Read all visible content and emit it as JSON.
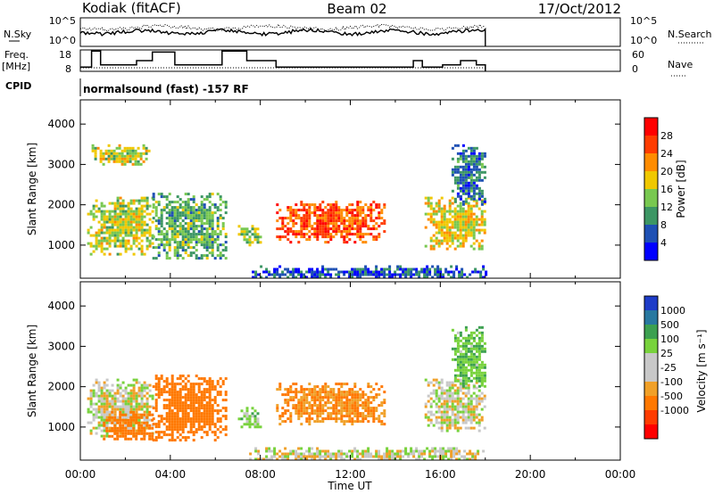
{
  "header": {
    "station": "Kodiak (fitACF)",
    "beam": "Beam 02",
    "date": "17/Oct/2012"
  },
  "noise_panel": {
    "left_label": "N.Sky",
    "right_label": "N.Search",
    "left_ticks": [
      "10^5",
      "10^0"
    ],
    "right_ticks": [
      "10^5",
      "10^0"
    ]
  },
  "freq_panel": {
    "left_label_1": "Freq.",
    "left_label_2": "[MHz]",
    "right_label": "Nave",
    "left_ticks": [
      "18",
      "8"
    ],
    "right_ticks": [
      "60",
      "0"
    ]
  },
  "cpid": {
    "label": "CPID",
    "text": "normalsound (fast) -157 RF"
  },
  "axes": {
    "ylabel": "Slant Range [km]",
    "xlabel": "Time UT",
    "xticks": [
      "00:00",
      "04:00",
      "08:00",
      "12:00",
      "16:00",
      "20:00",
      "00:00"
    ],
    "yticks": [
      "1000",
      "2000",
      "3000",
      "4000"
    ]
  },
  "chart_data": [
    {
      "type": "heatmap",
      "title": "",
      "quantity": "Power",
      "xlabel": "Time UT",
      "ylabel": "Slant Range [km]",
      "xlim_hours": [
        0,
        24
      ],
      "ylim_km": [
        180,
        4600
      ],
      "colorbar": {
        "label": "Power [dB]",
        "ticks": [
          "28",
          "24",
          "20",
          "16",
          "12",
          "8",
          "4"
        ],
        "colors": [
          "#ff0000",
          "#ff3c00",
          "#ff8c00",
          "#f0c800",
          "#78c850",
          "#3c9664",
          "#1e50b4",
          "#0000ff"
        ]
      },
      "echo_regions": [
        {
          "start": 0.3,
          "end": 3.2,
          "rmin": 800,
          "rmax": 2200,
          "value": 16
        },
        {
          "start": 0.5,
          "end": 3.0,
          "rmin": 3000,
          "rmax": 3500,
          "value": 16
        },
        {
          "start": 3.2,
          "end": 6.5,
          "rmin": 700,
          "rmax": 2300,
          "value": 12
        },
        {
          "start": 7.0,
          "end": 8.0,
          "rmin": 1000,
          "rmax": 1500,
          "value": 14
        },
        {
          "start": 8.7,
          "end": 13.5,
          "rmin": 1100,
          "rmax": 2100,
          "value": 25
        },
        {
          "start": 15.3,
          "end": 18.0,
          "rmin": 900,
          "rmax": 2200,
          "value": 18
        },
        {
          "start": 16.5,
          "end": 18.0,
          "rmin": 2000,
          "rmax": 3500,
          "value": 8
        },
        {
          "start": 7.5,
          "end": 18.0,
          "rmin": 200,
          "rmax": 500,
          "value": 6
        }
      ]
    },
    {
      "type": "heatmap",
      "title": "",
      "quantity": "Velocity",
      "xlabel": "Time UT",
      "ylabel": "Slant Range [km]",
      "xlim_hours": [
        0,
        24
      ],
      "ylim_km": [
        180,
        4600
      ],
      "colorbar": {
        "label": "Velocity [m s⁻¹]",
        "ticks": [
          "1000",
          "500",
          "100",
          "25",
          "-25",
          "-100",
          "-500",
          "-1000"
        ],
        "colors": [
          "#1e3cc8",
          "#2878a0",
          "#3ca050",
          "#78d23c",
          "#c8c8c8",
          "#c8c8c8",
          "#f0a028",
          "#ff7800",
          "#ff3c00",
          "#ff0000"
        ]
      },
      "echo_regions": [
        {
          "start": 0.3,
          "end": 3.2,
          "rmin": 800,
          "rmax": 2200,
          "value": 0
        },
        {
          "start": 1.0,
          "end": 3.2,
          "rmin": 700,
          "rmax": 1400,
          "value": -300
        },
        {
          "start": 3.2,
          "end": 6.5,
          "rmin": 700,
          "rmax": 2300,
          "value": -200
        },
        {
          "start": 7.0,
          "end": 8.0,
          "rmin": 1000,
          "rmax": 1500,
          "value": 50
        },
        {
          "start": 8.7,
          "end": 13.5,
          "rmin": 1100,
          "rmax": 2100,
          "value": -100
        },
        {
          "start": 15.3,
          "end": 18.0,
          "rmin": 900,
          "rmax": 2200,
          "value": 0
        },
        {
          "start": 16.5,
          "end": 18.0,
          "rmin": 2000,
          "rmax": 3500,
          "value": 80
        },
        {
          "start": 7.5,
          "end": 18.0,
          "rmin": 200,
          "rmax": 500,
          "value": 0
        }
      ]
    }
  ],
  "freq_series": {
    "name": "Freq.",
    "segments": [
      {
        "start": 0.0,
        "end": 0.5,
        "value": 10
      },
      {
        "start": 0.5,
        "end": 0.9,
        "value": 17.5
      },
      {
        "start": 0.9,
        "end": 2.5,
        "value": 11
      },
      {
        "start": 2.5,
        "end": 3.2,
        "value": 13
      },
      {
        "start": 3.2,
        "end": 4.2,
        "value": 17
      },
      {
        "start": 4.2,
        "end": 6.3,
        "value": 11
      },
      {
        "start": 6.3,
        "end": 7.4,
        "value": 17.5
      },
      {
        "start": 7.4,
        "end": 8.7,
        "value": 13
      },
      {
        "start": 8.7,
        "end": 14.8,
        "value": 10
      },
      {
        "start": 14.8,
        "end": 15.2,
        "value": 13
      },
      {
        "start": 15.2,
        "end": 16.1,
        "value": 10
      },
      {
        "start": 16.1,
        "end": 16.9,
        "value": 11
      },
      {
        "start": 16.9,
        "end": 17.6,
        "value": 13
      },
      {
        "start": 17.6,
        "end": 18.0,
        "value": 11
      }
    ]
  }
}
